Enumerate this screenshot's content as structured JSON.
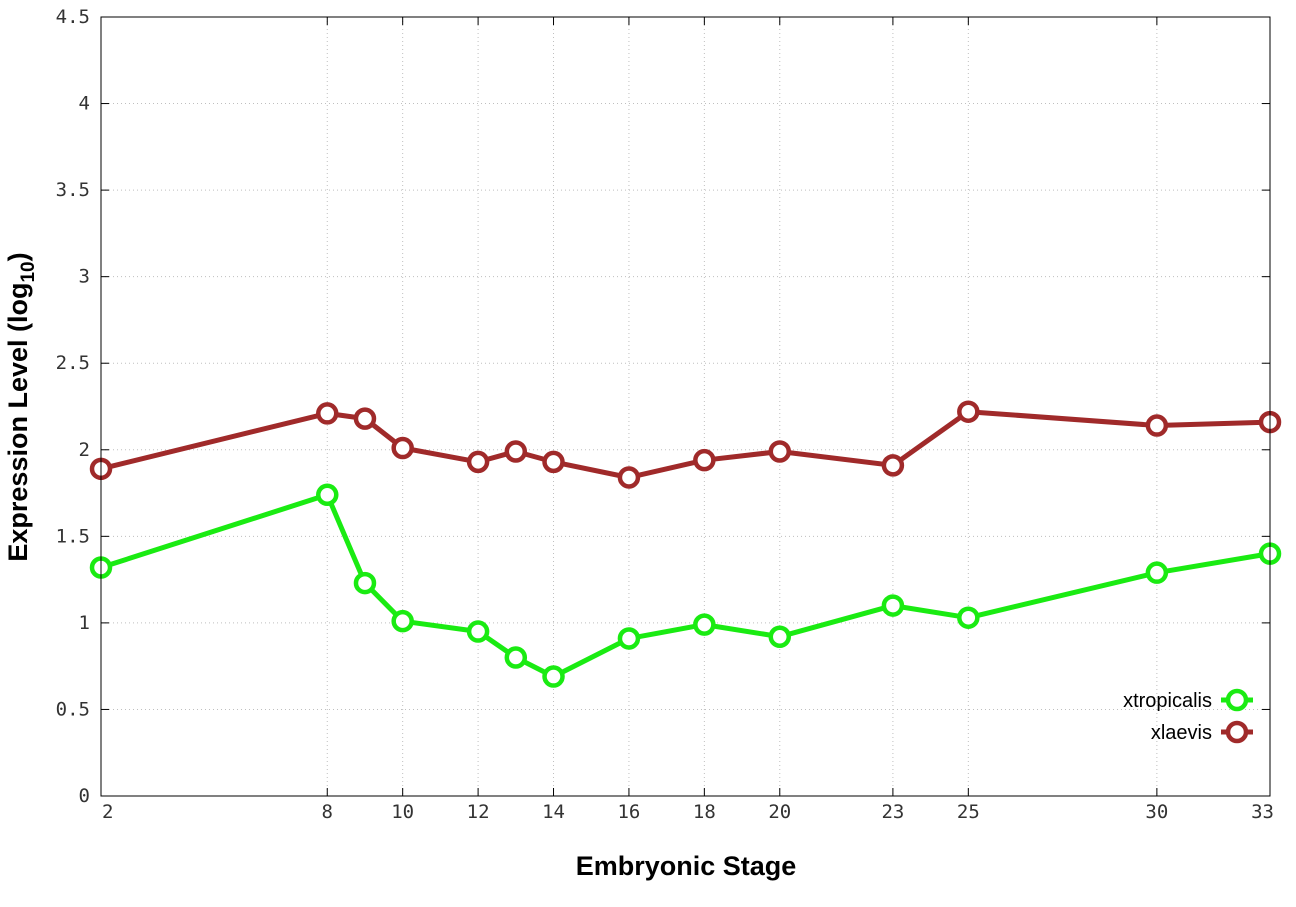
{
  "chart_data": {
    "type": "line",
    "title": "",
    "xlabel": "Embryonic Stage",
    "ylabel_main": "Expression Level (log",
    "ylabel_sub": "10",
    "ylabel_close": ")",
    "xlim": [
      2,
      33
    ],
    "ylim": [
      0,
      4.5
    ],
    "x_ticks": [
      2,
      8,
      10,
      12,
      14,
      16,
      18,
      20,
      23,
      25,
      30,
      33
    ],
    "x_tick_labels": [
      "2",
      "8",
      "10",
      "12",
      "14",
      "16",
      "18",
      "20",
      "23",
      "25",
      "30",
      "33"
    ],
    "y_ticks": [
      0,
      0.5,
      1,
      1.5,
      2,
      2.5,
      3,
      3.5,
      4,
      4.5
    ],
    "y_tick_labels": [
      "0",
      "0.5",
      "1",
      "1.5",
      "2",
      "2.5",
      "3",
      "3.5",
      "4",
      "4.5"
    ],
    "grid": true,
    "legend_position": "bottom-right",
    "x": [
      2,
      8,
      9,
      10,
      12,
      13,
      14,
      16,
      18,
      20,
      23,
      25,
      30,
      33
    ],
    "series": [
      {
        "name": "xtropicalis",
        "color": "#1aeb12",
        "values": [
          1.32,
          1.74,
          1.23,
          1.01,
          0.95,
          0.8,
          0.69,
          0.91,
          0.99,
          0.92,
          1.1,
          1.03,
          1.29,
          1.4
        ]
      },
      {
        "name": "xlaevis",
        "color": "#a02a2a",
        "values": [
          1.89,
          2.21,
          2.18,
          2.01,
          1.93,
          1.99,
          1.93,
          1.84,
          1.94,
          1.99,
          1.91,
          2.22,
          2.14,
          2.16
        ]
      }
    ]
  }
}
